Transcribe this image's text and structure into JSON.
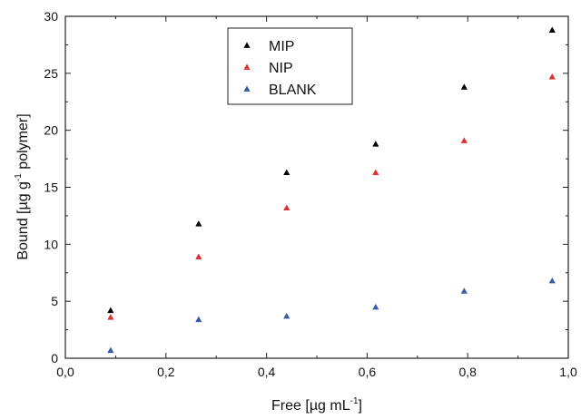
{
  "chart_data": {
    "type": "scatter",
    "xlabel": {
      "main": "Free [µg mL",
      "sup": "-1",
      "end": "]"
    },
    "ylabel": {
      "main": "Bound [µg g",
      "sup": "-1",
      "end": " polymer]"
    },
    "xlim": [
      0,
      1.0
    ],
    "ylim": [
      0,
      30
    ],
    "xticks": [
      0,
      0.2,
      0.4,
      0.6,
      0.8,
      1.0
    ],
    "xtick_labels": [
      "0,0",
      "0,2",
      "0,4",
      "0,6",
      "0,8",
      "1,0"
    ],
    "yticks": [
      0,
      5,
      10,
      15,
      20,
      25,
      30
    ],
    "ytick_labels": [
      "0",
      "5",
      "10",
      "15",
      "20",
      "25",
      "30"
    ],
    "grid": false,
    "legend": "top-center",
    "series": [
      {
        "name": "MIP",
        "color": "#000000",
        "x": [
          0.09,
          0.265,
          0.44,
          0.617,
          0.793,
          0.968
        ],
        "y": [
          4.2,
          11.8,
          16.3,
          18.8,
          23.8,
          28.8
        ]
      },
      {
        "name": "NIP",
        "color": "#e03030",
        "x": [
          0.09,
          0.265,
          0.44,
          0.617,
          0.793,
          0.968
        ],
        "y": [
          3.6,
          8.9,
          13.2,
          16.3,
          19.1,
          24.7
        ]
      },
      {
        "name": "BLANK",
        "color": "#3a5aa6",
        "x": [
          0.09,
          0.265,
          0.44,
          0.617,
          0.793,
          0.968
        ],
        "y": [
          0.7,
          3.4,
          3.7,
          4.5,
          5.9,
          6.8
        ]
      }
    ]
  }
}
